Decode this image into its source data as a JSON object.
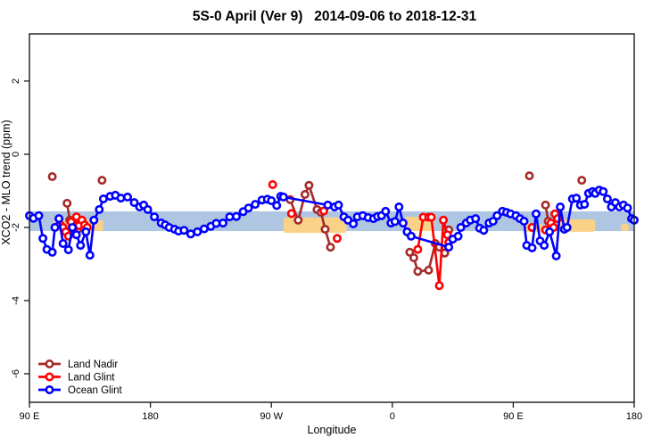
{
  "title": "5S-0 April (Ver 9)   2014-09-06 to 2018-12-31",
  "chart_data": {
    "type": "line",
    "title": "5S-0 April (Ver 9)   2014-09-06 to 2018-12-31",
    "xlabel": "Longitude",
    "ylabel": "XCO2 - MLO trend (ppm)",
    "xlim": [
      90,
      540
    ],
    "ylim": [
      -6.78,
      3.29
    ],
    "x_ticks": [
      {
        "value": 90,
        "label": "90 E"
      },
      {
        "value": 180,
        "label": "180"
      },
      {
        "value": 270,
        "label": "90 W"
      },
      {
        "value": 360,
        "label": "0"
      },
      {
        "value": 450,
        "label": "90 E"
      },
      {
        "value": 540,
        "label": "180"
      }
    ],
    "y_ticks": [
      "2",
      "0",
      "-2",
      "-4",
      "-6"
    ],
    "grid": false,
    "legend_position": "bottom-left",
    "bands": {
      "ocean_band": {
        "x": [
          90,
          540
        ],
        "y": [
          -1.56,
          -2.1
        ],
        "color": "#AFC6E2"
      },
      "land_band_color": "#FAD287",
      "land_bands": [
        {
          "x": [
            108,
            145
          ],
          "y": [
            -1.8,
            -2.1
          ]
        },
        {
          "x": [
            279,
            326
          ],
          "y": [
            -1.73,
            -2.15
          ]
        },
        {
          "x": [
            369,
            391
          ],
          "y": [
            -1.71,
            -2.1
          ]
        },
        {
          "x": [
            458,
            472
          ],
          "y": [
            -1.9,
            -2.12
          ]
        },
        {
          "x": [
            483,
            511
          ],
          "y": [
            -1.78,
            -2.12
          ]
        },
        {
          "x": [
            530,
            536
          ],
          "y": [
            -1.9,
            -2.1
          ]
        }
      ]
    },
    "series": [
      {
        "name": "Land Nadir",
        "color": "#A52A2A",
        "groups": [
          [
            [
              107,
              -0.61
            ]
          ],
          [
            [
              118,
              -1.34
            ],
            [
              120,
              -1.8
            ],
            [
              122,
              -1.95
            ],
            [
              126,
              -2.05
            ],
            [
              130,
              -2.0
            ]
          ],
          [
            [
              144,
              -0.71
            ]
          ],
          [
            [
              284,
              -1.24
            ],
            [
              290,
              -1.8
            ],
            [
              295,
              -1.1
            ],
            [
              298,
              -0.85
            ],
            [
              304,
              -1.51
            ],
            [
              307,
              -1.59
            ],
            [
              310,
              -2.05
            ],
            [
              314,
              -2.54
            ]
          ],
          [
            [
              373,
              -2.68
            ],
            [
              376,
              -2.83
            ],
            [
              379,
              -3.2
            ],
            [
              387,
              -3.17
            ],
            [
              392,
              -2.44
            ],
            [
              395,
              -2.54
            ],
            [
              399,
              -2.7
            ],
            [
              402,
              -2.07
            ]
          ],
          [
            [
              462,
              -0.59
            ]
          ],
          [
            [
              474,
              -1.39
            ],
            [
              476,
              -1.83
            ],
            [
              478,
              -2.0
            ]
          ],
          [
            [
              501,
              -0.71
            ]
          ]
        ]
      },
      {
        "name": "Land Glint",
        "color": "#FF0000",
        "groups": [
          [
            [
              113,
              -1.93
            ],
            [
              115,
              -2.0
            ],
            [
              117,
              -2.12
            ],
            [
              119,
              -2.24
            ],
            [
              121,
              -1.85
            ],
            [
              123,
              -2.05
            ],
            [
              125,
              -1.71
            ],
            [
              127,
              -1.95
            ],
            [
              129,
              -1.8
            ],
            [
              131,
              -1.93
            ],
            [
              133,
              -2.0
            ]
          ],
          [
            [
              271,
              -0.83
            ]
          ],
          [
            [
              285,
              -1.62
            ]
          ],
          [
            [
              309,
              -1.55
            ]
          ],
          [
            [
              319,
              -2.3
            ]
          ],
          [
            [
              379,
              -2.6
            ],
            [
              383,
              -1.72
            ],
            [
              387,
              -1.72
            ],
            [
              389,
              -1.72
            ],
            [
              395,
              -3.59
            ],
            [
              398,
              -1.8
            ],
            [
              401,
              -2.2
            ],
            [
              402,
              -2.41
            ]
          ],
          [
            [
              464,
              -2.0
            ]
          ],
          [
            [
              474,
              -2.07
            ],
            [
              478,
              -1.88
            ],
            [
              480,
              -2.0
            ],
            [
              481,
              -1.63
            ],
            [
              483,
              -1.76
            ]
          ]
        ]
      },
      {
        "name": "Ocean Glint",
        "color": "#0000FF",
        "groups": [
          [
            [
              90,
              -1.68
            ],
            [
              93,
              -1.75
            ],
            [
              97,
              -1.68
            ],
            [
              100,
              -2.3
            ],
            [
              103,
              -2.6
            ],
            [
              107,
              -2.68
            ],
            [
              109,
              -2.0
            ],
            [
              112,
              -1.76
            ],
            [
              115,
              -2.44
            ],
            [
              119,
              -2.61
            ],
            [
              122,
              -2.0
            ],
            [
              125,
              -2.2
            ],
            [
              128,
              -2.49
            ],
            [
              132,
              -2.12
            ],
            [
              135,
              -2.76
            ],
            [
              138,
              -1.8
            ],
            [
              142,
              -1.51
            ],
            [
              145,
              -1.22
            ],
            [
              150,
              -1.15
            ],
            [
              154,
              -1.12
            ],
            [
              158,
              -1.2
            ],
            [
              163,
              -1.17
            ],
            [
              168,
              -1.32
            ],
            [
              172,
              -1.44
            ],
            [
              175,
              -1.39
            ],
            [
              178,
              -1.51
            ],
            [
              183,
              -1.71
            ],
            [
              188,
              -1.88
            ],
            [
              191,
              -1.93
            ],
            [
              194,
              -2.0
            ],
            [
              198,
              -2.05
            ],
            [
              201,
              -2.1
            ],
            [
              205,
              -2.08
            ],
            [
              210,
              -2.18
            ],
            [
              215,
              -2.12
            ],
            [
              220,
              -2.04
            ],
            [
              225,
              -1.97
            ],
            [
              229,
              -1.89
            ],
            [
              234,
              -1.88
            ],
            [
              239,
              -1.71
            ],
            [
              244,
              -1.7
            ],
            [
              249,
              -1.57
            ],
            [
              253,
              -1.47
            ],
            [
              258,
              -1.37
            ],
            [
              263,
              -1.25
            ],
            [
              267,
              -1.23
            ],
            [
              270,
              -1.27
            ],
            [
              274,
              -1.4
            ],
            [
              277,
              -1.15
            ],
            [
              279,
              -1.17
            ],
            [
              312,
              -1.39
            ],
            [
              317,
              -1.44
            ],
            [
              320,
              -1.39
            ],
            [
              324,
              -1.71
            ],
            [
              327,
              -1.8
            ],
            [
              331,
              -1.9
            ],
            [
              334,
              -1.71
            ],
            [
              338,
              -1.68
            ],
            [
              342,
              -1.73
            ],
            [
              346,
              -1.76
            ],
            [
              349,
              -1.7
            ],
            [
              352,
              -1.68
            ],
            [
              355,
              -1.56
            ],
            [
              359,
              -1.88
            ],
            [
              362,
              -1.84
            ],
            [
              365,
              -1.44
            ],
            [
              368,
              -1.88
            ],
            [
              371,
              -2.12
            ],
            [
              374,
              -2.24
            ],
            [
              402,
              -2.54
            ],
            [
              405,
              -2.32
            ],
            [
              409,
              -2.24
            ],
            [
              411,
              -2.0
            ],
            [
              415,
              -1.88
            ],
            [
              418,
              -1.8
            ],
            [
              422,
              -1.76
            ],
            [
              425,
              -2.02
            ],
            [
              428,
              -2.08
            ],
            [
              432,
              -1.88
            ],
            [
              435,
              -1.83
            ],
            [
              438,
              -1.68
            ],
            [
              442,
              -1.56
            ],
            [
              445,
              -1.59
            ],
            [
              448,
              -1.63
            ],
            [
              452,
              -1.68
            ],
            [
              455,
              -1.76
            ],
            [
              458,
              -1.83
            ],
            [
              460,
              -2.49
            ],
            [
              464,
              -2.56
            ],
            [
              467,
              -1.63
            ],
            [
              470,
              -2.37
            ],
            [
              473,
              -2.49
            ],
            [
              477,
              -2.12
            ],
            [
              482,
              -2.78
            ],
            [
              485,
              -1.44
            ],
            [
              488,
              -2.05
            ],
            [
              490,
              -2.0
            ],
            [
              494,
              -1.22
            ],
            [
              497,
              -1.2
            ],
            [
              500,
              -1.39
            ],
            [
              503,
              -1.37
            ],
            [
              506,
              -1.07
            ],
            [
              509,
              -1.02
            ],
            [
              511,
              -1.07
            ],
            [
              514,
              -0.98
            ],
            [
              517,
              -1.02
            ],
            [
              520,
              -1.22
            ],
            [
              523,
              -1.44
            ],
            [
              526,
              -1.32
            ],
            [
              529,
              -1.44
            ],
            [
              532,
              -1.39
            ],
            [
              535,
              -1.47
            ],
            [
              538,
              -1.76
            ],
            [
              540,
              -1.8
            ]
          ]
        ]
      }
    ]
  }
}
